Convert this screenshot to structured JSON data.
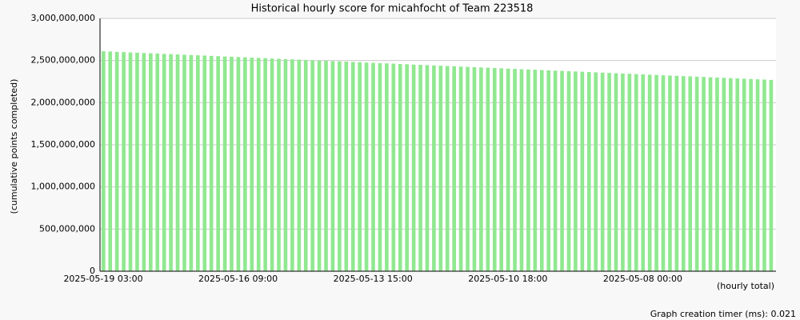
{
  "chart_data": {
    "type": "bar",
    "title": "Historical hourly score for micahfocht of Team 223518",
    "y_label": "(cumulative points completed)",
    "x_label": "(hourly total)",
    "footer": "Graph creation timer (ms): 0.021",
    "color": "#90e890",
    "grid": true,
    "ylim": [
      0,
      3000000000
    ],
    "yticks": [
      0,
      {
        "value": 500000000,
        "label": "500,000,000"
      },
      {
        "value": 1000000000,
        "label": "1,000,000,000"
      },
      {
        "value": 1500000000,
        "label": "1,500,000,000"
      },
      {
        "value": 2000000000,
        "label": "2,000,000,000"
      },
      {
        "value": 2500000000,
        "label": "2,500,000,000"
      },
      {
        "value": 3000000000,
        "label": "3,000,000,000"
      }
    ],
    "categories": [
      "2025-05-19 03:00",
      null,
      null,
      null,
      null,
      null,
      null,
      null,
      null,
      null,
      null,
      null,
      null,
      null,
      null,
      null,
      null,
      null,
      null,
      null,
      "2025-05-16 09:00",
      null,
      null,
      null,
      null,
      null,
      null,
      null,
      null,
      null,
      null,
      null,
      null,
      null,
      null,
      null,
      null,
      null,
      null,
      null,
      "2025-05-13 15:00",
      null,
      null,
      null,
      null,
      null,
      null,
      null,
      null,
      null,
      null,
      null,
      null,
      null,
      null,
      null,
      null,
      null,
      null,
      null,
      "2025-05-10 18:00",
      null,
      null,
      null,
      null,
      null,
      null,
      null,
      null,
      null,
      null,
      null,
      null,
      null,
      null,
      null,
      null,
      null,
      null,
      null,
      "2025-05-08 00:00",
      null,
      null,
      null,
      null,
      null,
      null,
      null,
      null,
      null,
      null,
      null,
      null,
      null,
      null,
      null,
      null,
      null,
      null,
      null
    ],
    "values": [
      2610000000,
      2607000000,
      2603000000,
      2600000000,
      2596000000,
      2593000000,
      2589000000,
      2586000000,
      2583000000,
      2579000000,
      2576000000,
      2572000000,
      2569000000,
      2565000000,
      2562000000,
      2559000000,
      2555000000,
      2552000000,
      2548000000,
      2545000000,
      2541000000,
      2538000000,
      2535000000,
      2531000000,
      2528000000,
      2524000000,
      2521000000,
      2517000000,
      2514000000,
      2511000000,
      2507000000,
      2504000000,
      2500000000,
      2497000000,
      2493000000,
      2490000000,
      2487000000,
      2483000000,
      2480000000,
      2476000000,
      2473000000,
      2469000000,
      2466000000,
      2463000000,
      2459000000,
      2456000000,
      2452000000,
      2449000000,
      2445000000,
      2442000000,
      2439000000,
      2435000000,
      2432000000,
      2428000000,
      2425000000,
      2421000000,
      2418000000,
      2415000000,
      2411000000,
      2408000000,
      2404000000,
      2401000000,
      2397000000,
      2394000000,
      2391000000,
      2387000000,
      2384000000,
      2380000000,
      2377000000,
      2373000000,
      2370000000,
      2367000000,
      2363000000,
      2360000000,
      2356000000,
      2353000000,
      2349000000,
      2346000000,
      2343000000,
      2339000000,
      2336000000,
      2332000000,
      2329000000,
      2325000000,
      2322000000,
      2319000000,
      2315000000,
      2312000000,
      2308000000,
      2305000000,
      2301000000,
      2298000000,
      2295000000,
      2291000000,
      2288000000,
      2284000000,
      2281000000,
      2277000000,
      2274000000,
      2270000000
    ]
  }
}
